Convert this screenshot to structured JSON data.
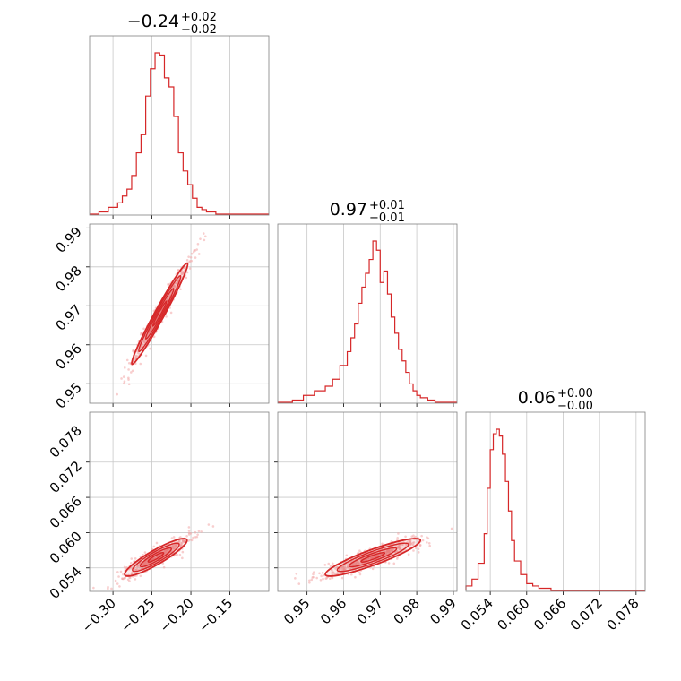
{
  "colors": {
    "accent": "#d62728",
    "frame": "#7f7f7f",
    "grid": "#c8c8c8",
    "point": "#f3a5a5"
  },
  "chart_data": [
    {
      "type": "histogram",
      "panel": "p0",
      "title_value": "−0.24",
      "title_upper": "+0.02",
      "title_lower": "−0.02",
      "xlim": [
        -0.33,
        -0.1
      ],
      "xticks": [
        -0.3,
        -0.25,
        -0.2,
        -0.15
      ],
      "bins_x": [
        -0.33,
        -0.318,
        -0.306,
        -0.294,
        -0.288,
        -0.282,
        -0.276,
        -0.27,
        -0.264,
        -0.258,
        -0.252,
        -0.246,
        -0.24,
        -0.234,
        -0.228,
        -0.222,
        -0.216,
        -0.21,
        -0.204,
        -0.198,
        -0.192,
        -0.186,
        -0.18,
        -0.174,
        -0.168,
        -0.15,
        -0.1
      ],
      "counts": [
        0,
        1,
        3,
        5,
        8,
        11,
        17,
        27,
        35,
        52,
        64,
        71,
        70,
        60,
        56,
        43,
        27,
        19,
        13,
        7,
        3,
        2,
        1,
        1,
        0,
        0
      ]
    },
    {
      "type": "histogram",
      "panel": "p3",
      "title_value": "0.97",
      "title_upper": "+0.01",
      "title_lower": "−0.01",
      "xlim": [
        0.942,
        0.991
      ],
      "xticks": [
        0.95,
        0.96,
        0.97,
        0.98,
        0.99
      ],
      "bins_x": [
        0.942,
        0.946,
        0.949,
        0.952,
        0.955,
        0.957,
        0.959,
        0.961,
        0.962,
        0.963,
        0.964,
        0.965,
        0.966,
        0.967,
        0.968,
        0.969,
        0.97,
        0.971,
        0.972,
        0.973,
        0.974,
        0.975,
        0.976,
        0.977,
        0.978,
        0.979,
        0.98,
        0.981,
        0.983,
        0.985,
        0.991
      ],
      "counts": [
        0,
        1,
        3,
        5,
        7,
        10,
        16,
        22,
        28,
        34,
        43,
        50,
        56,
        62,
        70,
        66,
        52,
        57,
        47,
        37,
        30,
        23,
        18,
        13,
        8,
        5,
        3,
        2,
        1,
        0
      ]
    },
    {
      "type": "histogram",
      "panel": "p5",
      "title_value": "0.06",
      "title_upper": "+0.00",
      "title_lower": "−0.00",
      "xlim": [
        0.05,
        0.0795
      ],
      "xticks": [
        0.054,
        0.06,
        0.066,
        0.072,
        0.078
      ],
      "bins_x": [
        0.05,
        0.051,
        0.052,
        0.053,
        0.0535,
        0.054,
        0.0545,
        0.055,
        0.0555,
        0.056,
        0.0565,
        0.057,
        0.0575,
        0.058,
        0.059,
        0.06,
        0.061,
        0.062,
        0.064,
        0.07,
        0.0795
      ],
      "counts": [
        2,
        5,
        12,
        25,
        45,
        62,
        69,
        71,
        68,
        60,
        48,
        35,
        22,
        13,
        7,
        3,
        2,
        1,
        0,
        0
      ]
    },
    {
      "type": "scatter",
      "panel": "p1",
      "description": "2D density contours",
      "xlim": [
        -0.33,
        -0.1
      ],
      "ylim": [
        0.945,
        0.991
      ],
      "xticks": [
        -0.3,
        -0.25,
        -0.2,
        -0.15
      ],
      "yticks": [
        0.95,
        0.96,
        0.97,
        0.98,
        0.99
      ],
      "mean": [
        -0.24,
        0.968
      ],
      "std": [
        0.018,
        0.0065
      ],
      "corr": 0.98
    },
    {
      "type": "scatter",
      "panel": "p2",
      "xlim": [
        -0.33,
        -0.1
      ],
      "ylim": [
        0.05,
        0.0805
      ],
      "xticks": [
        -0.3,
        -0.25,
        -0.2,
        -0.15
      ],
      "yticks": [
        0.054,
        0.06,
        0.066,
        0.072,
        0.078
      ],
      "mean": [
        -0.245,
        0.0558
      ],
      "std": [
        0.02,
        0.0016
      ],
      "corr": 0.9
    },
    {
      "type": "scatter",
      "panel": "p4",
      "xlim": [
        0.942,
        0.991
      ],
      "ylim": [
        0.05,
        0.0805
      ],
      "xticks": [
        0.95,
        0.96,
        0.97,
        0.98,
        0.99
      ],
      "yticks": [
        0.054,
        0.06,
        0.066,
        0.072,
        0.078
      ],
      "mean": [
        0.968,
        0.0558
      ],
      "std": [
        0.0065,
        0.0016
      ],
      "corr": 0.9
    }
  ],
  "tick_labels": {
    "x_col0": [
      "−0.30",
      "−0.25",
      "−0.20",
      "−0.15"
    ],
    "x_col1": [
      "0.95",
      "0.96",
      "0.97",
      "0.98",
      "0.99"
    ],
    "x_col2": [
      "0.054",
      "0.060",
      "0.066",
      "0.072",
      "0.078"
    ],
    "y_row1": [
      "0.95",
      "0.96",
      "0.97",
      "0.98",
      "0.99"
    ],
    "y_row2": [
      "0.054",
      "0.060",
      "0.066",
      "0.072",
      "0.078"
    ]
  }
}
